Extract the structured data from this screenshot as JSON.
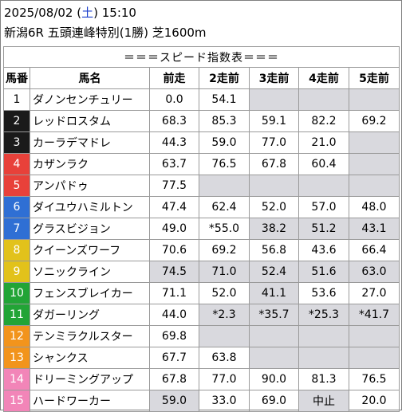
{
  "header": {
    "date": "2025/08/02",
    "dow_open": " (",
    "dow": "土",
    "dow_close": ") ",
    "time": "15:10",
    "race": "新潟6R 五頭連峰特別(1勝) 芝1600m"
  },
  "table_title": "＝＝＝スピード指数表＝＝＝",
  "columns": [
    "馬番",
    "馬名",
    "前走",
    "2走前",
    "3走前",
    "4走前",
    "5走前"
  ],
  "colors": {
    "white": "#ffffff",
    "black": "#1a1a1a",
    "red": "#e8413a",
    "blue": "#2f6fd4",
    "yellow": "#e2c21b",
    "green": "#22a436",
    "orange": "#f2941c",
    "pink": "#f285b8",
    "gray_cell": "#d9d9de"
  },
  "rows": [
    {
      "no": "1",
      "name": "ダノンセンチュリー",
      "color": "white",
      "v": [
        "0.0",
        "54.1",
        "",
        "",
        ""
      ],
      "g": [
        false,
        false,
        true,
        true,
        true
      ]
    },
    {
      "no": "2",
      "name": "レッドロスタム",
      "color": "black",
      "v": [
        "68.3",
        "85.3",
        "59.1",
        "82.2",
        "69.2"
      ],
      "g": [
        false,
        false,
        false,
        false,
        false
      ]
    },
    {
      "no": "3",
      "name": "カーラデマドレ",
      "color": "black",
      "v": [
        "44.3",
        "59.0",
        "77.0",
        "21.0",
        ""
      ],
      "g": [
        false,
        false,
        false,
        false,
        true
      ]
    },
    {
      "no": "4",
      "name": "カザンラク",
      "color": "red",
      "v": [
        "63.7",
        "76.5",
        "67.8",
        "60.4",
        ""
      ],
      "g": [
        false,
        false,
        false,
        false,
        true
      ]
    },
    {
      "no": "5",
      "name": "アンパドゥ",
      "color": "red",
      "v": [
        "77.5",
        "",
        "",
        "",
        ""
      ],
      "g": [
        false,
        true,
        true,
        true,
        true
      ]
    },
    {
      "no": "6",
      "name": "ダイユウハミルトン",
      "color": "blue",
      "v": [
        "47.4",
        "62.4",
        "52.0",
        "57.0",
        "48.0"
      ],
      "g": [
        false,
        false,
        false,
        false,
        false
      ]
    },
    {
      "no": "7",
      "name": "グラスビジョン",
      "color": "blue",
      "v": [
        "49.0",
        "*55.0",
        "38.2",
        "51.2",
        "43.1"
      ],
      "g": [
        false,
        false,
        true,
        true,
        true
      ]
    },
    {
      "no": "8",
      "name": "クイーンズワーフ",
      "color": "yellow",
      "v": [
        "70.6",
        "69.2",
        "56.8",
        "43.6",
        "66.4"
      ],
      "g": [
        false,
        false,
        false,
        false,
        false
      ]
    },
    {
      "no": "9",
      "name": "ソニックライン",
      "color": "yellow",
      "v": [
        "74.5",
        "71.0",
        "52.4",
        "51.6",
        "63.0"
      ],
      "g": [
        true,
        true,
        true,
        true,
        true
      ]
    },
    {
      "no": "10",
      "name": "フェンスブレイカー",
      "color": "green",
      "v": [
        "71.1",
        "52.0",
        "41.1",
        "53.6",
        "27.0"
      ],
      "g": [
        false,
        false,
        true,
        false,
        false
      ]
    },
    {
      "no": "11",
      "name": "ダガーリング",
      "color": "green",
      "v": [
        "44.0",
        "*2.3",
        "*35.7",
        "*25.3",
        "*41.7"
      ],
      "g": [
        false,
        true,
        true,
        true,
        true
      ]
    },
    {
      "no": "12",
      "name": "テンミラクルスター",
      "color": "orange",
      "v": [
        "69.8",
        "",
        "",
        "",
        ""
      ],
      "g": [
        false,
        true,
        true,
        true,
        true
      ]
    },
    {
      "no": "13",
      "name": "シャンクス",
      "color": "orange",
      "v": [
        "67.7",
        "63.8",
        "",
        "",
        ""
      ],
      "g": [
        false,
        false,
        true,
        true,
        true
      ]
    },
    {
      "no": "14",
      "name": "ドリーミングアップ",
      "color": "pink",
      "v": [
        "67.8",
        "77.0",
        "90.0",
        "81.3",
        "76.5"
      ],
      "g": [
        false,
        false,
        false,
        false,
        false
      ]
    },
    {
      "no": "15",
      "name": "ハードワーカー",
      "color": "pink",
      "v": [
        "59.0",
        "33.0",
        "69.0",
        "中止",
        "20.0"
      ],
      "g": [
        true,
        false,
        false,
        true,
        false
      ]
    }
  ]
}
